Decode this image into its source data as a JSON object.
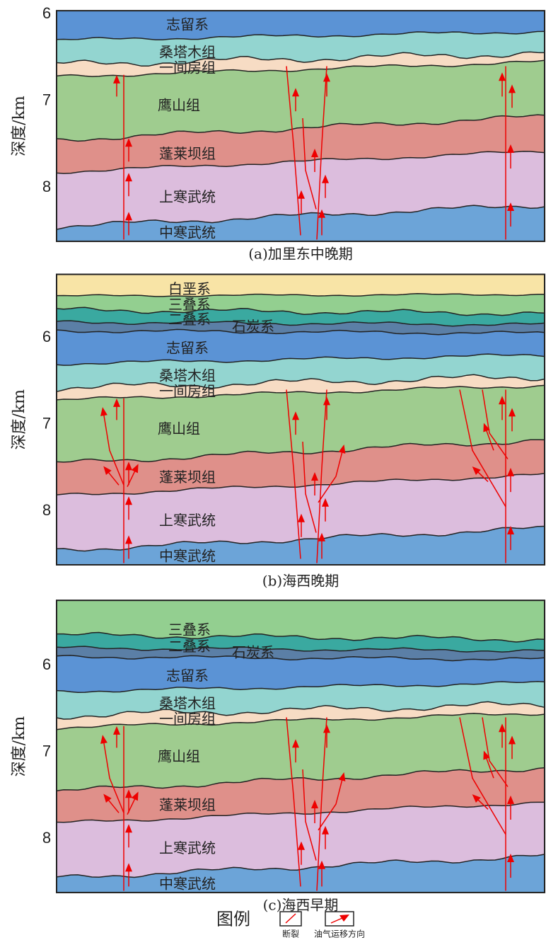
{
  "panels": [
    {
      "caption": "(a)加里东中晚期",
      "depth_axis_label": "深度/km",
      "depth_ticks": [
        6,
        7,
        8
      ],
      "layer_labels": [
        "志留系",
        "桑塔木组",
        "一间房组",
        "鹰山组",
        "蓬莱坝组",
        "上寒武统",
        "中寒武统"
      ]
    },
    {
      "caption": "(b)海西晚期",
      "depth_axis_label": "深度/km",
      "depth_ticks": [
        6,
        7,
        8
      ],
      "layer_labels": [
        "白垩系",
        "三叠系",
        "二叠系",
        "石炭系",
        "志留系",
        "桑塔木组",
        "一间房组",
        "鹰山组",
        "蓬莱坝组",
        "上寒武统",
        "中寒武统"
      ]
    },
    {
      "caption": "(c)海西早期",
      "depth_axis_label": "深度/km",
      "depth_ticks": [
        6,
        7,
        8
      ],
      "layer_labels": [
        "三叠系",
        "二叠系",
        "石炭系",
        "志留系",
        "桑塔木组",
        "一间房组",
        "鹰山组",
        "蓬莱坝组",
        "上寒武统",
        "中寒武统"
      ]
    }
  ],
  "legend": {
    "title": "图例",
    "items": [
      "断裂",
      "油气运移方向"
    ]
  }
}
